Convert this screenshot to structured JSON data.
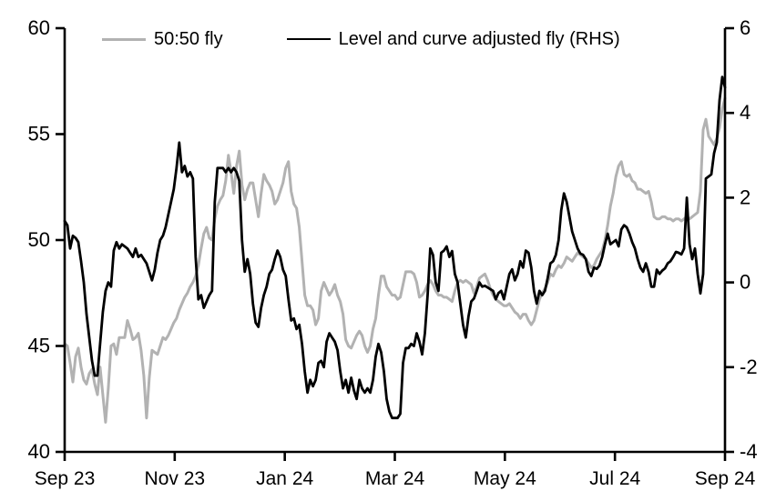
{
  "chart_data": {
    "type": "line",
    "title": "",
    "xlabel": "",
    "ylabel": "",
    "grid": false,
    "legend_position": "top-center",
    "background": "#ffffff",
    "axis_color": "#000000",
    "x_axis": {
      "unit": "months since Sep 2023",
      "range_months": [
        0,
        12
      ],
      "tick_months": [
        0,
        2,
        4,
        6,
        8,
        10,
        12
      ],
      "tick_labels": [
        "Sep 23",
        "Nov 23",
        "Jan 24",
        "Mar 24",
        "May 24",
        "Jul 24",
        "Sep 24"
      ]
    },
    "left_axis": {
      "range": [
        40,
        60
      ],
      "ticks": [
        60,
        55,
        50,
        45,
        40
      ],
      "series": "50:50 fly"
    },
    "right_axis": {
      "range": [
        -4,
        6
      ],
      "ticks": [
        6,
        4,
        2,
        0,
        -2,
        -4
      ],
      "series": "Level and curve adjusted fly (RHS)"
    },
    "series": [
      {
        "name": "50:50 fly",
        "axis": "left",
        "color": "#b2b2b2",
        "line_width": 3,
        "x_start_month": 0,
        "x_end_month": 12,
        "values": [
          45.1,
          45.0,
          44.2,
          43.3,
          44.5,
          44.9,
          44.0,
          43.4,
          43.2,
          43.7,
          43.9,
          43.2,
          42.7,
          44.0,
          42.7,
          41.4,
          43.0,
          45.0,
          45.1,
          44.6,
          45.4,
          45.4,
          45.4,
          46.2,
          45.8,
          45.3,
          45.4,
          45.6,
          44.8,
          43.6,
          41.6,
          43.5,
          44.8,
          44.7,
          44.6,
          45.0,
          45.4,
          45.3,
          45.5,
          45.8,
          46.1,
          46.3,
          46.7,
          47.0,
          47.3,
          47.5,
          47.8,
          48.0,
          48.3,
          48.8,
          49.6,
          50.3,
          50.6,
          50.1,
          50.0,
          51.0,
          51.6,
          51.9,
          52.1,
          52.8,
          54.0,
          53.2,
          52.2,
          53.5,
          54.2,
          52.6,
          51.9,
          52.4,
          52.7,
          52.7,
          51.9,
          51.1,
          52.2,
          53.1,
          52.8,
          52.6,
          52.3,
          51.7,
          51.9,
          52.3,
          52.7,
          53.4,
          53.7,
          52.3,
          51.7,
          51.5,
          50.6,
          49.0,
          47.4,
          46.9,
          46.9,
          46.7,
          46.0,
          46.3,
          47.6,
          48.0,
          47.7,
          47.4,
          47.6,
          47.9,
          47.4,
          47.1,
          46.5,
          45.3,
          45.0,
          44.9,
          45.2,
          45.5,
          45.7,
          45.5,
          45.0,
          44.7,
          45.0,
          45.8,
          46.3,
          47.4,
          48.3,
          48.3,
          47.8,
          47.6,
          47.4,
          47.4,
          47.2,
          47.3,
          47.9,
          48.5,
          48.5,
          48.5,
          48.4,
          48.0,
          47.3,
          47.4,
          47.6,
          47.9,
          48.1,
          47.9,
          47.6,
          47.4,
          47.4,
          47.3,
          47.3,
          47.2,
          47.1,
          47.6,
          48.0,
          48.1,
          48.0,
          48.1,
          48.0,
          47.9,
          47.5,
          47.8,
          48.2,
          48.3,
          48.4,
          48.1,
          47.7,
          47.4,
          47.2,
          47.1,
          47.0,
          46.9,
          46.9,
          47.0,
          46.8,
          46.6,
          46.5,
          46.3,
          46.5,
          46.5,
          46.2,
          46.0,
          46.2,
          46.7,
          47.2,
          47.5,
          47.7,
          48.0,
          48.4,
          48.3,
          48.6,
          48.8,
          48.7,
          48.9,
          49.2,
          49.1,
          49.0,
          49.2,
          49.4,
          49.3,
          49.2,
          49.1,
          48.9,
          48.7,
          48.8,
          49.1,
          49.3,
          49.5,
          50.0,
          50.7,
          51.6,
          52.2,
          53.0,
          53.5,
          53.7,
          53.1,
          53.0,
          53.1,
          52.8,
          52.7,
          52.4,
          52.4,
          52.3,
          52.2,
          52.3,
          51.8,
          51.1,
          51.0,
          51.0,
          51.1,
          51.1,
          51.0,
          51.0,
          50.9,
          51.0,
          51.0,
          50.9,
          51.0,
          51.1,
          51.0,
          51.1,
          51.2,
          51.3,
          52.3,
          55.2,
          55.7,
          54.9,
          54.7,
          54.5,
          54.8,
          55.3,
          56.2,
          56.7
        ]
      },
      {
        "name": "Level and curve adjusted fly (RHS)",
        "axis": "right",
        "color": "#000000",
        "line_width": 2.8,
        "x_start_month": 0,
        "x_end_month": 12,
        "values": [
          1.45,
          1.35,
          0.8,
          1.1,
          1.05,
          0.95,
          0.5,
          0.0,
          -0.75,
          -1.3,
          -1.85,
          -2.2,
          -2.2,
          -1.45,
          -0.7,
          -0.2,
          0.0,
          -0.1,
          0.75,
          0.95,
          0.8,
          0.9,
          0.85,
          0.8,
          0.7,
          0.6,
          0.8,
          0.6,
          0.65,
          0.55,
          0.45,
          0.25,
          0.05,
          0.3,
          0.7,
          1.0,
          1.1,
          1.3,
          1.6,
          1.9,
          2.2,
          2.7,
          3.3,
          2.6,
          2.75,
          2.5,
          2.6,
          2.45,
          0.6,
          -0.4,
          -0.3,
          -0.6,
          -0.45,
          -0.3,
          -0.2,
          1.9,
          2.7,
          2.7,
          2.7,
          2.6,
          2.7,
          2.6,
          2.7,
          2.6,
          2.4,
          1.0,
          0.25,
          0.55,
          0.2,
          -0.5,
          -0.95,
          -1.05,
          -0.6,
          -0.3,
          -0.1,
          0.2,
          0.3,
          0.55,
          0.75,
          0.6,
          0.3,
          0.15,
          -0.4,
          -0.9,
          -0.85,
          -1.1,
          -1.0,
          -1.45,
          -2.1,
          -2.6,
          -2.3,
          -2.45,
          -2.3,
          -1.9,
          -1.85,
          -2.0,
          -1.4,
          -1.2,
          -1.3,
          -1.4,
          -1.6,
          -2.1,
          -2.5,
          -2.3,
          -2.6,
          -2.25,
          -2.55,
          -2.75,
          -2.3,
          -2.5,
          -2.6,
          -2.5,
          -2.6,
          -2.3,
          -1.75,
          -1.45,
          -1.65,
          -2.1,
          -2.75,
          -3.05,
          -3.2,
          -3.2,
          -3.2,
          -3.1,
          -1.9,
          -1.55,
          -1.55,
          -1.45,
          -1.5,
          -1.2,
          -1.4,
          -1.7,
          -1.2,
          -0.3,
          0.8,
          0.65,
          0.0,
          -0.2,
          0.7,
          0.75,
          0.85,
          0.6,
          0.74,
          0.2,
          0.0,
          -0.5,
          -1.0,
          -1.3,
          -0.8,
          -0.45,
          -0.38,
          -0.2,
          0.0,
          -0.1,
          -0.08,
          -0.12,
          -0.16,
          -0.2,
          -0.4,
          -0.25,
          -0.2,
          -0.4,
          -0.1,
          0.2,
          0.31,
          0.05,
          0.2,
          0.5,
          0.35,
          0.75,
          0.7,
          0.35,
          -0.2,
          -0.5,
          -0.2,
          -0.3,
          -0.2,
          0.1,
          0.45,
          0.5,
          0.65,
          1.0,
          1.7,
          2.1,
          1.9,
          1.55,
          1.2,
          1.0,
          0.8,
          0.68,
          0.65,
          0.55,
          0.25,
          0.15,
          0.35,
          0.32,
          0.4,
          0.6,
          0.9,
          1.15,
          0.9,
          0.95,
          1.0,
          0.85,
          1.25,
          1.35,
          1.3,
          1.15,
          0.95,
          0.8,
          0.55,
          0.35,
          0.25,
          0.45,
          0.25,
          -0.1,
          -0.1,
          0.3,
          0.2,
          0.28,
          0.33,
          0.45,
          0.5,
          0.6,
          0.72,
          0.7,
          0.66,
          0.8,
          2.0,
          0.9,
          0.55,
          0.8,
          0.2,
          -0.26,
          0.2,
          2.45,
          2.5,
          2.55,
          3.05,
          3.3,
          4.3,
          4.85,
          4.6
        ]
      }
    ]
  }
}
